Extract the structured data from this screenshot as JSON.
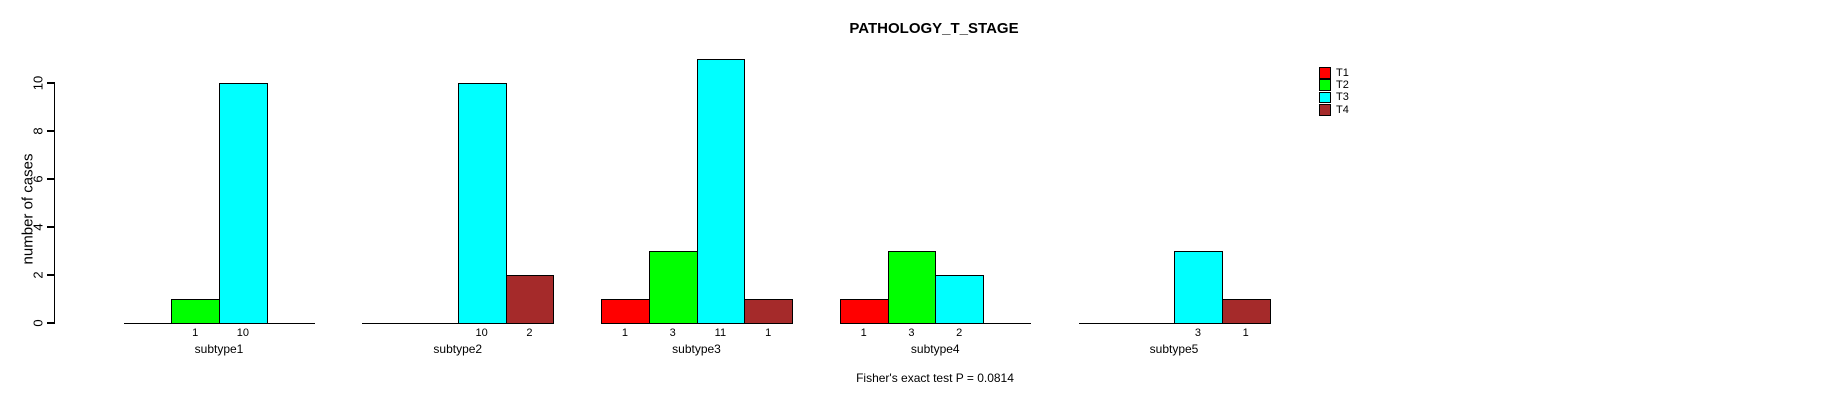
{
  "figure": {
    "background": "#FFFFFF",
    "axis_color": "#000000",
    "text_color": "#000000"
  },
  "chart_data": {
    "type": "bar",
    "title": "PATHOLOGY_T_STAGE",
    "ylabel": "number of cases",
    "xlabel": "",
    "footnote": "Fisher's exact test P = 0.0814",
    "categories": [
      "subtype1",
      "subtype2",
      "subtype3",
      "subtype4",
      "subtype5"
    ],
    "series": [
      {
        "name": "T1",
        "color": "#FF0000",
        "values": [
          0,
          0,
          1,
          1,
          0
        ]
      },
      {
        "name": "T2",
        "color": "#00FF00",
        "values": [
          1,
          0,
          3,
          3,
          0
        ]
      },
      {
        "name": "T3",
        "color": "#00FFFF",
        "values": [
          10,
          10,
          11,
          2,
          3
        ]
      },
      {
        "name": "T4",
        "color": "#A52A2A",
        "values": [
          0,
          2,
          1,
          0,
          1
        ]
      }
    ],
    "bar_value_labels": true,
    "yticks": [
      0,
      2,
      4,
      6,
      8,
      10
    ],
    "ylim": [
      0,
      11
    ],
    "grid": false,
    "legend": {
      "position": "top-right",
      "entries": [
        "T1",
        "T2",
        "T3",
        "T4"
      ]
    }
  }
}
